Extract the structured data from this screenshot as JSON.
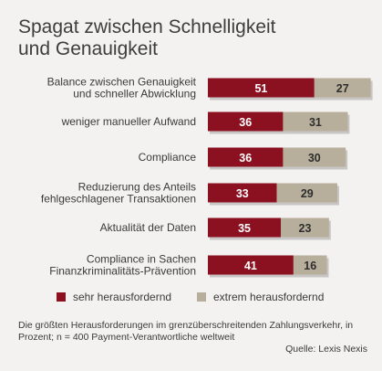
{
  "title": {
    "line1": "Spagat zwischen Schnelligkeit",
    "line2": "und Genauigkeit"
  },
  "colors": {
    "sehr": "#8c1120",
    "extrem": "#b8ae9c"
  },
  "chart_data": {
    "type": "bar",
    "orientation": "horizontal",
    "stacked": true,
    "categories": [
      [
        "Balance zwischen Genauigkeit",
        "und schneller Abwicklung"
      ],
      [
        "weniger manueller Aufwand"
      ],
      [
        "Compliance"
      ],
      [
        "Reduzierung des Anteils",
        "fehlgeschlagener Transaktionen"
      ],
      [
        "Aktualität der Daten"
      ],
      [
        "Compliance in Sachen",
        "Finanzkriminalitäts-Prävention"
      ]
    ],
    "series": [
      {
        "name": "sehr herausfordernd",
        "values": [
          51,
          36,
          36,
          33,
          35,
          41
        ]
      },
      {
        "name": "extrem herausfordernd",
        "values": [
          27,
          31,
          30,
          29,
          23,
          16
        ]
      }
    ]
  },
  "legend": {
    "sehr": "sehr herausfordernd",
    "extrem": "extrem herausfordernd"
  },
  "footnote": "Die größten Herausforderungen im grenzüberschreitenden Zahlungsverkehr, in Prozent; n = 400 Payment-Verantwortliche weltweit",
  "source": "Quelle: Lexis Nexis"
}
